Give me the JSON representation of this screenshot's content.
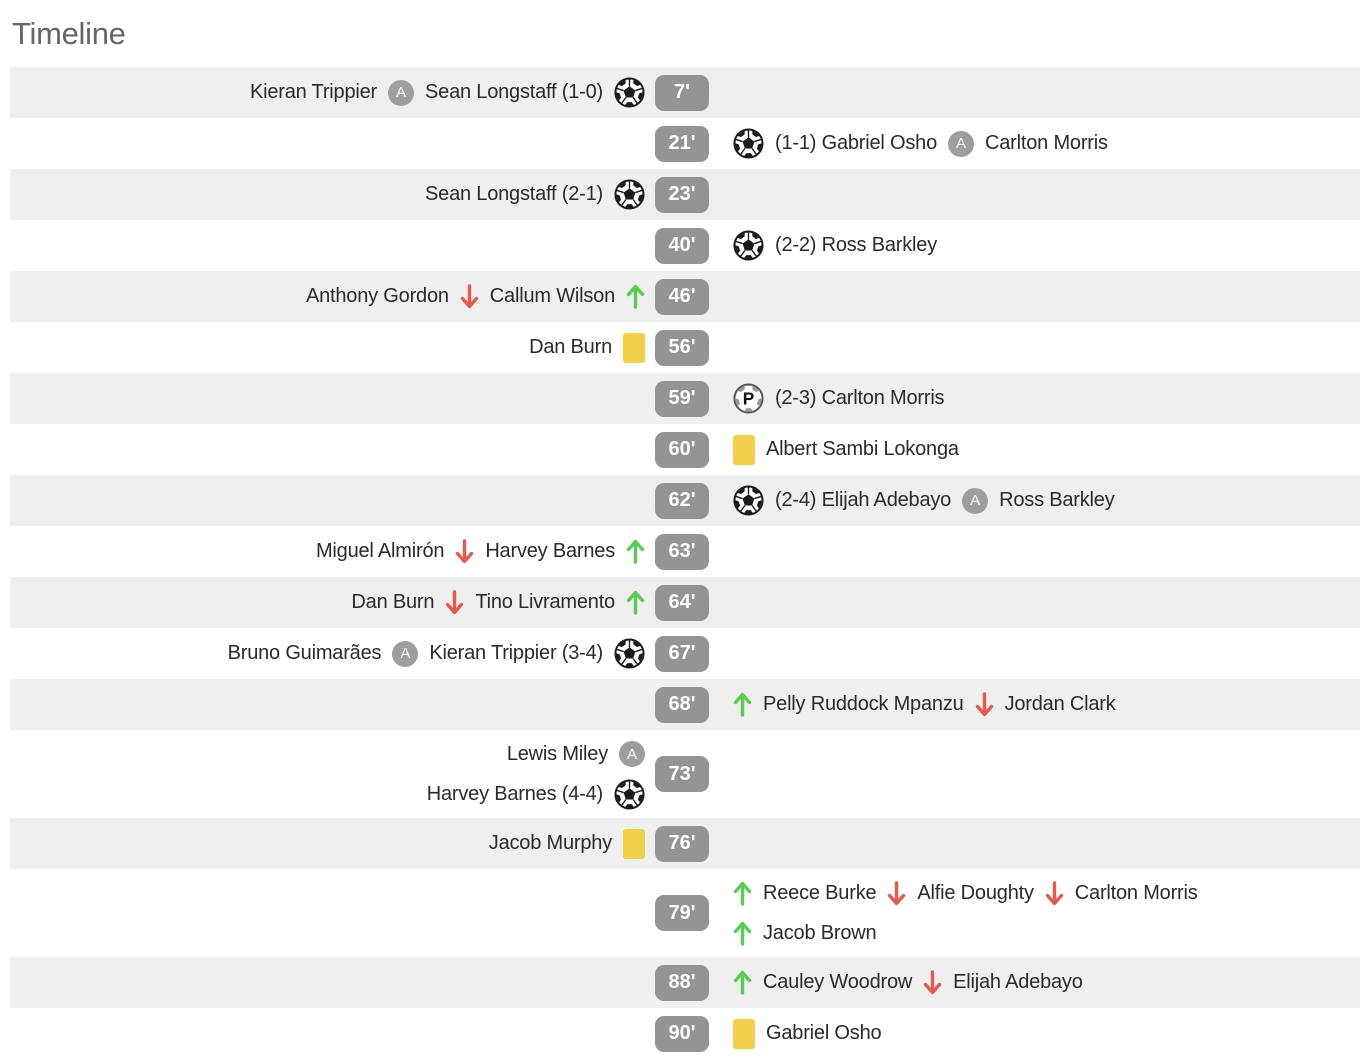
{
  "title": "Timeline",
  "colors": {
    "row_shade": "#efefef",
    "time_badge_bg": "#949494",
    "assist_badge_bg": "#9e9e9e",
    "yellow_card": "#f0d04a",
    "sub_on_green": "#5bcb54",
    "sub_off_red": "#e15b51",
    "text": "#2a2a2a",
    "title_color": "#666666",
    "ball_dark": "#1b1b1b",
    "penalty_ball_gray": "#9a9a9a"
  },
  "icons": {
    "assist_label": "A",
    "penalty_label": "P"
  },
  "timeline": {
    "events": [
      {
        "time": "7'",
        "team": "home",
        "lines": [
          [
            {
              "type": "text",
              "value": "Kieran Trippier"
            },
            {
              "type": "assist"
            },
            {
              "type": "text",
              "value": "Sean Longstaff (1-0)"
            },
            {
              "type": "goal"
            }
          ]
        ]
      },
      {
        "time": "21'",
        "team": "away",
        "lines": [
          [
            {
              "type": "goal"
            },
            {
              "type": "text",
              "value": "(1-1) Gabriel Osho"
            },
            {
              "type": "assist"
            },
            {
              "type": "text",
              "value": "Carlton Morris"
            }
          ]
        ]
      },
      {
        "time": "23'",
        "team": "home",
        "lines": [
          [
            {
              "type": "text",
              "value": "Sean Longstaff (2-1)"
            },
            {
              "type": "goal"
            }
          ]
        ]
      },
      {
        "time": "40'",
        "team": "away",
        "lines": [
          [
            {
              "type": "goal"
            },
            {
              "type": "text",
              "value": "(2-2) Ross Barkley"
            }
          ]
        ]
      },
      {
        "time": "46'",
        "team": "home",
        "lines": [
          [
            {
              "type": "text",
              "value": "Anthony Gordon"
            },
            {
              "type": "off"
            },
            {
              "type": "text",
              "value": "Callum Wilson"
            },
            {
              "type": "on"
            }
          ]
        ]
      },
      {
        "time": "56'",
        "team": "home",
        "lines": [
          [
            {
              "type": "text",
              "value": "Dan Burn"
            },
            {
              "type": "yellow"
            }
          ]
        ]
      },
      {
        "time": "59'",
        "team": "away",
        "lines": [
          [
            {
              "type": "pen"
            },
            {
              "type": "text",
              "value": "(2-3) Carlton Morris"
            }
          ]
        ]
      },
      {
        "time": "60'",
        "team": "away",
        "lines": [
          [
            {
              "type": "yellow"
            },
            {
              "type": "text",
              "value": "Albert Sambi Lokonga"
            }
          ]
        ]
      },
      {
        "time": "62'",
        "team": "away",
        "lines": [
          [
            {
              "type": "goal"
            },
            {
              "type": "text",
              "value": "(2-4) Elijah Adebayo"
            },
            {
              "type": "assist"
            },
            {
              "type": "text",
              "value": "Ross Barkley"
            }
          ]
        ]
      },
      {
        "time": "63'",
        "team": "home",
        "lines": [
          [
            {
              "type": "text",
              "value": "Miguel Almirón"
            },
            {
              "type": "off"
            },
            {
              "type": "text",
              "value": "Harvey Barnes"
            },
            {
              "type": "on"
            }
          ]
        ]
      },
      {
        "time": "64'",
        "team": "home",
        "lines": [
          [
            {
              "type": "text",
              "value": "Dan Burn"
            },
            {
              "type": "off"
            },
            {
              "type": "text",
              "value": "Tino Livramento"
            },
            {
              "type": "on"
            }
          ]
        ]
      },
      {
        "time": "67'",
        "team": "home",
        "lines": [
          [
            {
              "type": "text",
              "value": "Bruno Guimarães"
            },
            {
              "type": "assist"
            },
            {
              "type": "text",
              "value": "Kieran Trippier (3-4)"
            },
            {
              "type": "goal"
            }
          ]
        ]
      },
      {
        "time": "68'",
        "team": "away",
        "lines": [
          [
            {
              "type": "on"
            },
            {
              "type": "text",
              "value": "Pelly Ruddock Mpanzu"
            },
            {
              "type": "off"
            },
            {
              "type": "text",
              "value": "Jordan Clark"
            }
          ]
        ]
      },
      {
        "time": "73'",
        "team": "home",
        "lines": [
          [
            {
              "type": "text",
              "value": "Lewis Miley"
            },
            {
              "type": "assist"
            }
          ],
          [
            {
              "type": "text",
              "value": "Harvey Barnes (4-4)"
            },
            {
              "type": "goal"
            }
          ]
        ]
      },
      {
        "time": "76'",
        "team": "home",
        "lines": [
          [
            {
              "type": "text",
              "value": "Jacob Murphy"
            },
            {
              "type": "yellow"
            }
          ]
        ]
      },
      {
        "time": "79'",
        "team": "away",
        "lines": [
          [
            {
              "type": "on"
            },
            {
              "type": "text",
              "value": "Reece Burke"
            },
            {
              "type": "off"
            },
            {
              "type": "text",
              "value": "Alfie Doughty"
            },
            {
              "type": "off"
            },
            {
              "type": "text",
              "value": "Carlton Morris"
            }
          ],
          [
            {
              "type": "on"
            },
            {
              "type": "text",
              "value": "Jacob Brown"
            }
          ]
        ]
      },
      {
        "time": "88'",
        "team": "away",
        "lines": [
          [
            {
              "type": "on"
            },
            {
              "type": "text",
              "value": "Cauley Woodrow"
            },
            {
              "type": "off"
            },
            {
              "type": "text",
              "value": "Elijah Adebayo"
            }
          ]
        ]
      },
      {
        "time": "90'",
        "team": "away",
        "lines": [
          [
            {
              "type": "yellow"
            },
            {
              "type": "text",
              "value": "Gabriel Osho"
            }
          ]
        ]
      }
    ]
  }
}
